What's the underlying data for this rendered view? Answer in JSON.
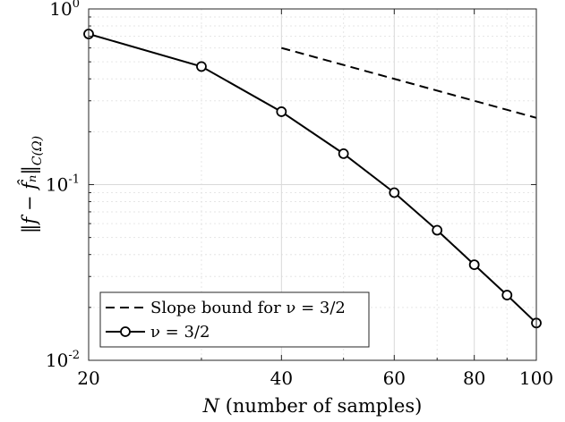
{
  "chart_data": {
    "type": "line",
    "xscale": "log",
    "yscale": "log",
    "xlim": [
      20,
      100
    ],
    "ylim": [
      0.01,
      1
    ],
    "grid": true,
    "xlabel_symbol": "N",
    "xlabel_text": "(number of samples)",
    "ylabel": "‖f − f̂ₙ‖",
    "ylabel_sub": "C(Ω)",
    "x_ticks": [
      20,
      40,
      60,
      80,
      100
    ],
    "x_tick_labels": [
      "20",
      "40",
      "60",
      "80",
      "100"
    ],
    "y_ticks": [
      0.01,
      0.1,
      1
    ],
    "y_tick_bases": [
      "10",
      "10",
      "10"
    ],
    "y_tick_exps": [
      "-2",
      "-1",
      "0"
    ],
    "legend_position": "bottom-left",
    "series": [
      {
        "name": "Slope bound for ν = 3/2",
        "style": "dashed",
        "color": "#000000",
        "x": [
          40,
          100
        ],
        "y": [
          0.6,
          0.24
        ]
      },
      {
        "name": "ν = 3/2",
        "style": "solid",
        "marker": "circle",
        "color": "#000000",
        "x": [
          20,
          30,
          40,
          50,
          60,
          70,
          80,
          90,
          100
        ],
        "y": [
          0.72,
          0.47,
          0.26,
          0.15,
          0.09,
          0.055,
          0.035,
          0.0235,
          0.0163
        ]
      }
    ]
  }
}
